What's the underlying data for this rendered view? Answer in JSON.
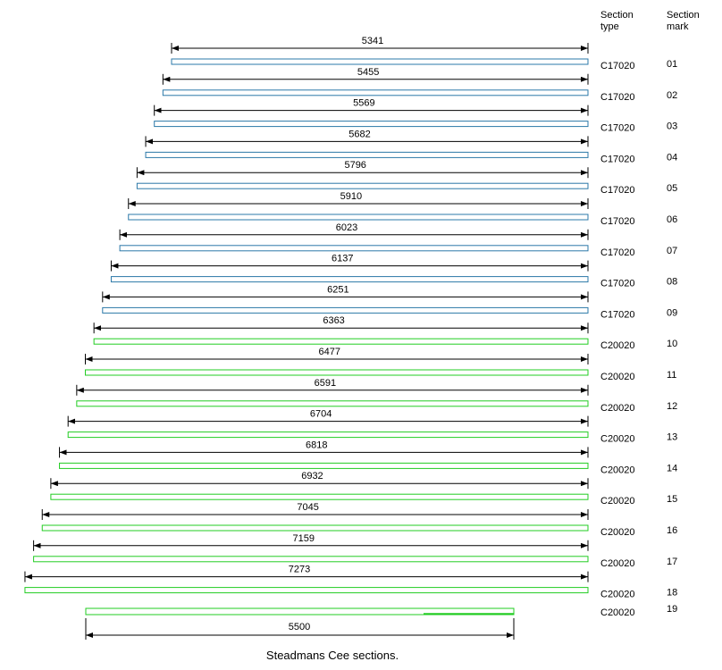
{
  "headers": {
    "type_line1": "Section",
    "type_line2": "type",
    "mark_line1": "Section",
    "mark_line2": "mark"
  },
  "colors": {
    "c17020": "#2b78a8",
    "c20020": "#22cc22",
    "dim": "#000000"
  },
  "sections": [
    {
      "length": "5341",
      "type": "C17020",
      "mark": "01"
    },
    {
      "length": "5455",
      "type": "C17020",
      "mark": "02"
    },
    {
      "length": "5569",
      "type": "C17020",
      "mark": "03"
    },
    {
      "length": "5682",
      "type": "C17020",
      "mark": "04"
    },
    {
      "length": "5796",
      "type": "C17020",
      "mark": "05"
    },
    {
      "length": "5910",
      "type": "C17020",
      "mark": "06"
    },
    {
      "length": "6023",
      "type": "C17020",
      "mark": "07"
    },
    {
      "length": "6137",
      "type": "C17020",
      "mark": "08"
    },
    {
      "length": "6251",
      "type": "C17020",
      "mark": "09"
    },
    {
      "length": "6363",
      "type": "C20020",
      "mark": "10"
    },
    {
      "length": "6477",
      "type": "C20020",
      "mark": "11"
    },
    {
      "length": "6591",
      "type": "C20020",
      "mark": "12"
    },
    {
      "length": "6704",
      "type": "C20020",
      "mark": "13"
    },
    {
      "length": "6818",
      "type": "C20020",
      "mark": "14"
    },
    {
      "length": "6932",
      "type": "C20020",
      "mark": "15"
    },
    {
      "length": "7045",
      "type": "C20020",
      "mark": "16"
    },
    {
      "length": "7159",
      "type": "C20020",
      "mark": "17"
    },
    {
      "length": "7273",
      "type": "C20020",
      "mark": "18"
    }
  ],
  "last_section": {
    "length": "5500",
    "type": "C20020",
    "mark": "19"
  },
  "caption": "Steadmans Cee sections."
}
